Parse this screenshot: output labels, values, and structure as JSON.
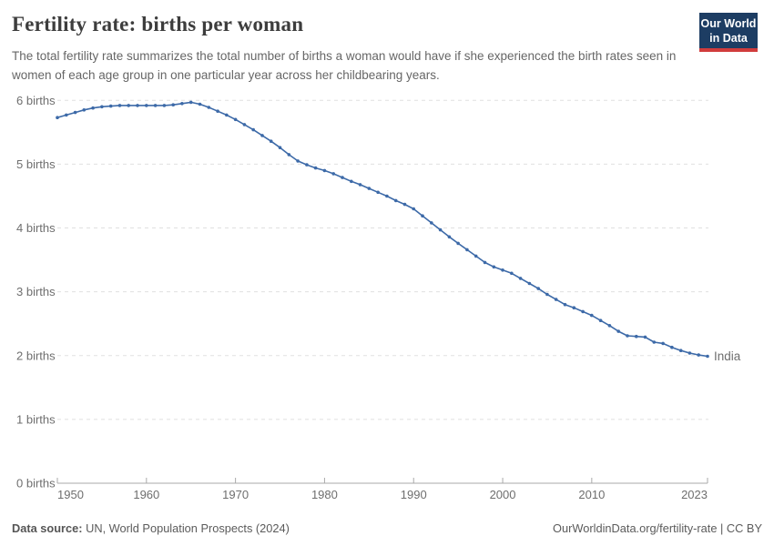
{
  "header": {
    "title": "Fertility rate: births per woman",
    "subtitle": "The total fertility rate summarizes the total number of births a woman would have if she experienced the birth rates seen in women of each age group in one particular year across her childbearing years."
  },
  "logo": {
    "line1": "Our World",
    "line2": "in Data",
    "bg_color": "#1d3d63",
    "accent_color": "#d13c3c"
  },
  "chart_data": {
    "type": "line",
    "title": "Fertility rate: births per woman",
    "xlabel": "",
    "ylabel": "",
    "xlim": [
      1950,
      2023
    ],
    "ylim": [
      0,
      6
    ],
    "x_ticks": [
      1950,
      1960,
      1970,
      1980,
      1990,
      2000,
      2010,
      2023
    ],
    "y_tick_labels": [
      "0 births",
      "1 births",
      "2 births",
      "3 births",
      "4 births",
      "5 births",
      "6 births"
    ],
    "grid": "horizontal-dashed",
    "legend_position": "end-of-line-label",
    "series": [
      {
        "name": "India",
        "color": "#3d6aa8",
        "years": [
          1950,
          1951,
          1952,
          1953,
          1954,
          1955,
          1956,
          1957,
          1958,
          1959,
          1960,
          1961,
          1962,
          1963,
          1964,
          1965,
          1966,
          1967,
          1968,
          1969,
          1970,
          1971,
          1972,
          1973,
          1974,
          1975,
          1976,
          1977,
          1978,
          1979,
          1980,
          1981,
          1982,
          1983,
          1984,
          1985,
          1986,
          1987,
          1988,
          1989,
          1990,
          1991,
          1992,
          1993,
          1994,
          1995,
          1996,
          1997,
          1998,
          1999,
          2000,
          2001,
          2002,
          2003,
          2004,
          2005,
          2006,
          2007,
          2008,
          2009,
          2010,
          2011,
          2012,
          2013,
          2014,
          2015,
          2016,
          2017,
          2018,
          2019,
          2020,
          2021,
          2022,
          2023
        ],
        "values": [
          5.73,
          5.77,
          5.81,
          5.85,
          5.88,
          5.9,
          5.91,
          5.92,
          5.92,
          5.92,
          5.92,
          5.92,
          5.92,
          5.93,
          5.95,
          5.97,
          5.94,
          5.89,
          5.83,
          5.77,
          5.7,
          5.62,
          5.54,
          5.45,
          5.36,
          5.26,
          5.15,
          5.05,
          4.99,
          4.94,
          4.9,
          4.85,
          4.79,
          4.73,
          4.68,
          4.62,
          4.56,
          4.5,
          4.43,
          4.37,
          4.3,
          4.19,
          4.08,
          3.97,
          3.86,
          3.76,
          3.66,
          3.56,
          3.46,
          3.39,
          3.34,
          3.29,
          3.21,
          3.13,
          3.05,
          2.96,
          2.88,
          2.8,
          2.75,
          2.69,
          2.63,
          2.55,
          2.47,
          2.38,
          2.31,
          2.3,
          2.29,
          2.21,
          2.19,
          2.13,
          2.08,
          2.04,
          2.01,
          1.99
        ]
      }
    ],
    "colors": {
      "gridline": "#e0e0e0",
      "axis": "#a9a9a9",
      "tick_label": "#6e6e6e"
    }
  },
  "footer": {
    "datasource_label": "Data source:",
    "datasource_value": " UN, World Population Prospects (2024)",
    "link_text": "OurWorldinData.org/fertility-rate",
    "separator": " | ",
    "license": "CC BY"
  }
}
